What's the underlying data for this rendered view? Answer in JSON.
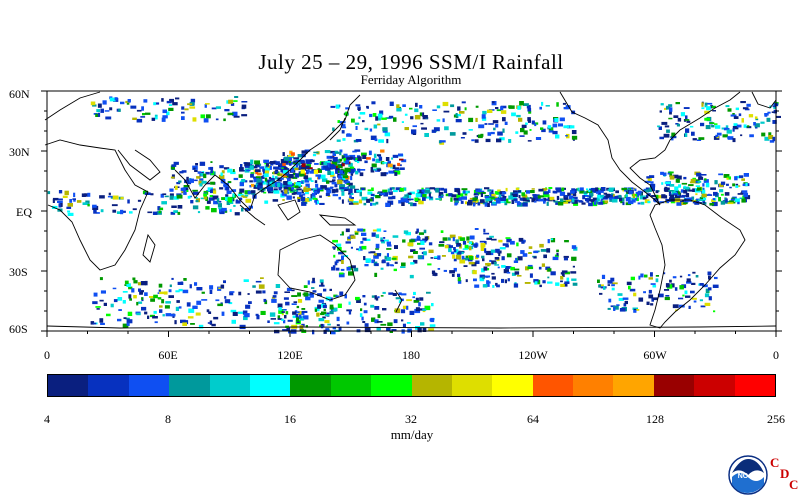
{
  "title": "July 25 – 29, 1996 SSM/I Rainfall",
  "subtitle": "Ferriday Algorithm",
  "lat_labels": [
    "60N",
    "30N",
    "EQ",
    "30S",
    "60S"
  ],
  "lat_values": [
    60,
    30,
    0,
    -30,
    -60
  ],
  "lon_labels": [
    "0",
    "60E",
    "120E",
    "180",
    "120W",
    "60W",
    "0"
  ],
  "lon_values": [
    0,
    60,
    120,
    180,
    240,
    300,
    360
  ],
  "colorbar": {
    "colors": [
      "#0a1f7f",
      "#0731bf",
      "#0f4ff2",
      "#00999c",
      "#00cccc",
      "#00ffff",
      "#009900",
      "#00c800",
      "#00ff00",
      "#b5b500",
      "#dede00",
      "#ffff00",
      "#ff5500",
      "#ff8000",
      "#ffa500",
      "#990000",
      "#cc0000",
      "#ff0000"
    ],
    "labels": [
      "4",
      "8",
      "16",
      "32",
      "64",
      "128",
      "256"
    ],
    "unit": "mm/day"
  },
  "logo": {
    "name": "NOAA",
    "letters": [
      "C",
      "D",
      "C"
    ]
  }
}
